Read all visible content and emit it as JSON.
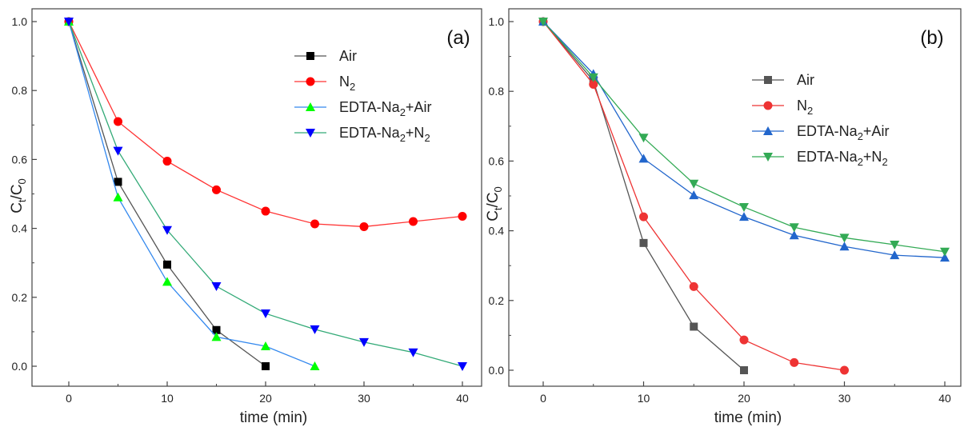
{
  "chart_data": [
    {
      "type": "line",
      "panel_label": "(a)",
      "xlabel": "time (min)",
      "ylabel": "Ct/C0",
      "ylabel_main": "C",
      "ylabel_sub1": "t",
      "ylabel_mid": "/C",
      "ylabel_sub2": "0",
      "xlim": [
        0,
        40
      ],
      "ylim": [
        0,
        1.0
      ],
      "xticks": [
        0,
        10,
        20,
        30,
        40
      ],
      "xtick_labels": [
        "0",
        "10",
        "20",
        "30",
        "40"
      ],
      "yticks": [
        0,
        0.2,
        0.4,
        0.6,
        0.8,
        1.0
      ],
      "ytick_labels": [
        "0.0",
        "0.2",
        "0.4",
        "0.6",
        "0.8",
        "1.0"
      ],
      "legend_position": "upper-right",
      "series": [
        {
          "name": "Air",
          "legend_main": "Air",
          "legend_sub": "",
          "legend_tail": "",
          "marker": "square",
          "marker_color": "#000000",
          "line_color": "#555555",
          "x": [
            0,
            5,
            10,
            15,
            20
          ],
          "y": [
            1.0,
            0.535,
            0.295,
            0.105,
            0.0
          ]
        },
        {
          "name": "N2",
          "legend_main": "N",
          "legend_sub": "2",
          "legend_tail": "",
          "marker": "circle",
          "marker_color": "#ff0000",
          "line_color": "#ff3333",
          "x": [
            0,
            5,
            10,
            15,
            20,
            25,
            30,
            35,
            40
          ],
          "y": [
            1.0,
            0.71,
            0.595,
            0.512,
            0.45,
            0.413,
            0.405,
            0.42,
            0.435
          ]
        },
        {
          "name": "EDTA-Na2+Air",
          "legend_main": "EDTA-Na",
          "legend_sub": "2",
          "legend_tail": "+Air",
          "marker": "triangle-up",
          "marker_color": "#00ff00",
          "line_color": "#3388ee",
          "x": [
            0,
            5,
            10,
            15,
            20,
            25
          ],
          "y": [
            1.0,
            0.49,
            0.245,
            0.085,
            0.058,
            0.0
          ]
        },
        {
          "name": "EDTA-Na2+N2",
          "legend_main": "EDTA-Na",
          "legend_sub": "2",
          "legend_tail": "+N",
          "legend_sub2": "2",
          "marker": "triangle-down",
          "marker_color": "#0000ff",
          "line_color": "#33aa77",
          "x": [
            0,
            5,
            10,
            15,
            20,
            25,
            30,
            35,
            40
          ],
          "y": [
            1.0,
            0.625,
            0.395,
            0.232,
            0.153,
            0.107,
            0.07,
            0.04,
            0.0
          ]
        }
      ]
    },
    {
      "type": "line",
      "panel_label": "(b)",
      "xlabel": "time (min)",
      "ylabel": "Ct/C0",
      "ylabel_main": "C",
      "ylabel_sub1": "t",
      "ylabel_mid": "/C",
      "ylabel_sub2": "0",
      "xlim": [
        0,
        40
      ],
      "ylim": [
        0,
        1.0
      ],
      "xticks": [
        0,
        10,
        20,
        30,
        40
      ],
      "xtick_labels": [
        "0",
        "10",
        "20",
        "30",
        "40"
      ],
      "yticks": [
        0,
        0.2,
        0.4,
        0.6,
        0.8,
        1.0
      ],
      "ytick_labels": [
        "0.0",
        "0.2",
        "0.4",
        "0.6",
        "0.8",
        "1.0"
      ],
      "legend_position": "upper-right",
      "series": [
        {
          "name": "Air",
          "legend_main": "Air",
          "legend_sub": "",
          "legend_tail": "",
          "marker": "square",
          "marker_color": "#555555",
          "line_color": "#555555",
          "x": [
            0,
            5,
            10,
            15,
            20
          ],
          "y": [
            1.0,
            0.83,
            0.365,
            0.125,
            0.0
          ]
        },
        {
          "name": "N2",
          "legend_main": "N",
          "legend_sub": "2",
          "legend_tail": "",
          "marker": "circle",
          "marker_color": "#ee3333",
          "line_color": "#ee3333",
          "x": [
            0,
            5,
            10,
            15,
            20,
            25,
            30
          ],
          "y": [
            1.0,
            0.82,
            0.44,
            0.24,
            0.087,
            0.022,
            0.0
          ]
        },
        {
          "name": "EDTA-Na2+Air",
          "legend_main": "EDTA-Na",
          "legend_sub": "2",
          "legend_tail": "+Air",
          "marker": "triangle-up",
          "marker_color": "#2266cc",
          "line_color": "#2266cc",
          "x": [
            0,
            5,
            10,
            15,
            20,
            25,
            30,
            35,
            40
          ],
          "y": [
            1.0,
            0.85,
            0.607,
            0.502,
            0.44,
            0.387,
            0.355,
            0.33,
            0.323
          ]
        },
        {
          "name": "EDTA-Na2+N2",
          "legend_main": "EDTA-Na",
          "legend_sub": "2",
          "legend_tail": "+N",
          "legend_sub2": "2",
          "marker": "triangle-down",
          "marker_color": "#33aa55",
          "line_color": "#33aa55",
          "x": [
            0,
            5,
            10,
            15,
            20,
            25,
            30,
            35,
            40
          ],
          "y": [
            1.0,
            0.84,
            0.667,
            0.535,
            0.468,
            0.41,
            0.38,
            0.36,
            0.34
          ]
        }
      ]
    }
  ]
}
